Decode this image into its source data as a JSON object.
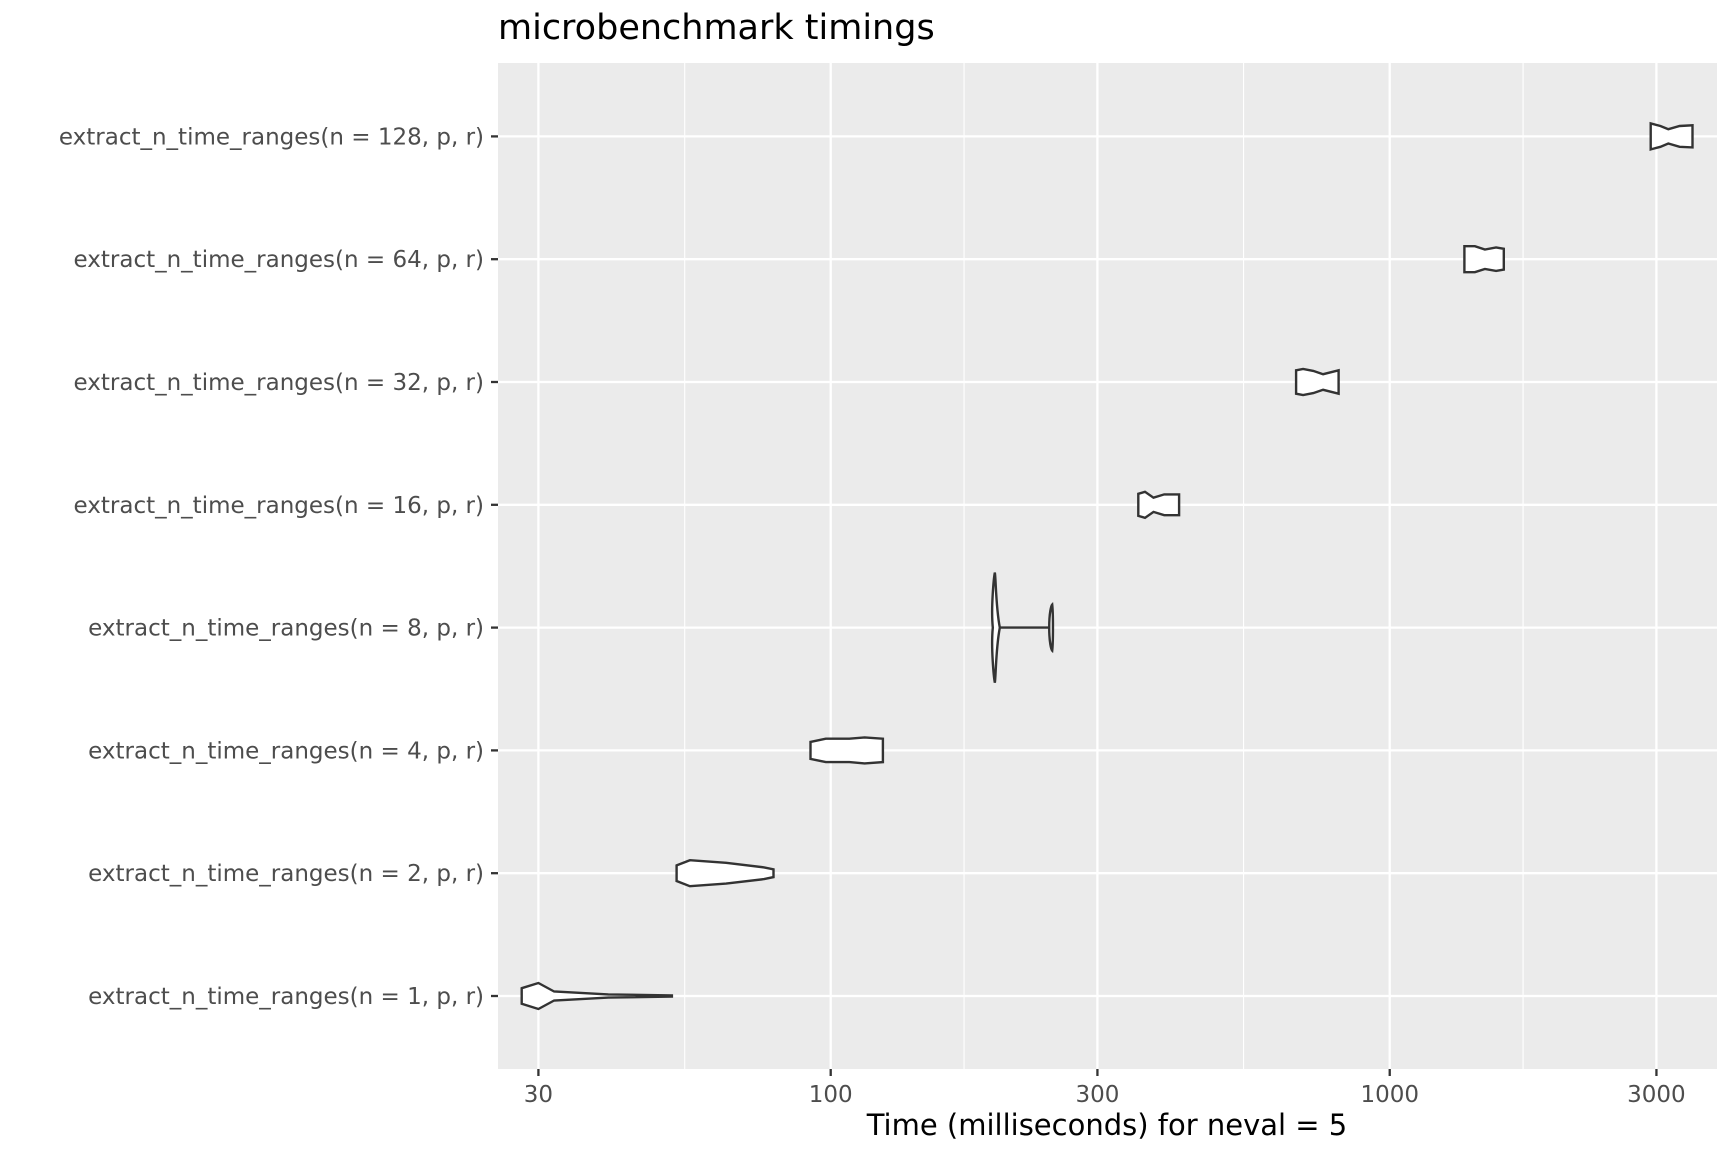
{
  "chart_data": {
    "type": "violin",
    "title": "microbenchmark timings",
    "xlabel": "Time (milliseconds) for neval = 5",
    "ylabel": "",
    "x_scale": "log10",
    "xlim": [
      25.4,
      3850
    ],
    "x_ticks": [
      30,
      100,
      300,
      1000,
      3000
    ],
    "x_tick_labels": [
      "30",
      "100",
      "300",
      "1000",
      "3000"
    ],
    "x_minor_ticks": [
      54.8,
      173.2,
      547.7,
      1732
    ],
    "grid": true,
    "background": "#ebebeb",
    "categories": [
      "extract_n_time_ranges(n = 1, p, r)",
      "extract_n_time_ranges(n = 2, p, r)",
      "extract_n_time_ranges(n = 4, p, r)",
      "extract_n_time_ranges(n = 8, p, r)",
      "extract_n_time_ranges(n = 16, p, r)",
      "extract_n_time_ranges(n = 32, p, r)",
      "extract_n_time_ranges(n = 64, p, r)",
      "extract_n_time_ranges(n = 128, p, r)"
    ],
    "series": [
      {
        "category": "extract_n_time_ranges(n = 1, p, r)",
        "min": 28,
        "max": 52,
        "profile": [
          [
            28,
            0.6
          ],
          [
            30,
            1.0
          ],
          [
            32,
            0.35
          ],
          [
            40,
            0.12
          ],
          [
            52,
            0.05
          ]
        ]
      },
      {
        "category": "extract_n_time_ranges(n = 2, p, r)",
        "min": 53,
        "max": 79,
        "profile": [
          [
            53,
            0.6
          ],
          [
            56,
            1.0
          ],
          [
            65,
            0.8
          ],
          [
            76,
            0.45
          ],
          [
            79,
            0.3
          ]
        ]
      },
      {
        "category": "extract_n_time_ranges(n = 4, p, r)",
        "min": 92,
        "max": 124,
        "profile": [
          [
            92,
            0.65
          ],
          [
            98,
            0.9
          ],
          [
            108,
            0.9
          ],
          [
            115,
            1.0
          ],
          [
            124,
            0.9
          ]
        ]
      },
      {
        "category": "extract_n_time_ranges(n = 8, p, r)",
        "min": 195,
        "max": 248,
        "profile": [
          [
            195,
            0.0
          ],
          [
            196,
            1.0
          ],
          [
            198,
            0.55
          ],
          [
            200,
            0.02
          ],
          [
            246,
            0.02
          ],
          [
            247,
            0.45
          ],
          [
            248,
            0.0
          ]
        ]
      },
      {
        "category": "extract_n_time_ranges(n = 16, p, r)",
        "min": 355,
        "max": 420,
        "profile": [
          [
            355,
            0.85
          ],
          [
            365,
            1.0
          ],
          [
            378,
            0.55
          ],
          [
            395,
            0.8
          ],
          [
            420,
            0.8
          ]
        ]
      },
      {
        "category": "extract_n_time_ranges(n = 32, p, r)",
        "min": 680,
        "max": 810,
        "profile": [
          [
            680,
            0.9
          ],
          [
            700,
            1.0
          ],
          [
            730,
            0.85
          ],
          [
            760,
            0.6
          ],
          [
            810,
            0.9
          ]
        ]
      },
      {
        "category": "extract_n_time_ranges(n = 64, p, r)",
        "min": 1360,
        "max": 1600,
        "profile": [
          [
            1360,
            1.0
          ],
          [
            1420,
            1.0
          ],
          [
            1480,
            0.75
          ],
          [
            1550,
            0.9
          ],
          [
            1600,
            0.8
          ]
        ]
      },
      {
        "category": "extract_n_time_ranges(n = 128, p, r)",
        "min": 2930,
        "max": 3480,
        "profile": [
          [
            2930,
            1.0
          ],
          [
            3050,
            0.8
          ],
          [
            3150,
            0.55
          ],
          [
            3300,
            0.8
          ],
          [
            3480,
            0.85
          ]
        ]
      }
    ]
  }
}
